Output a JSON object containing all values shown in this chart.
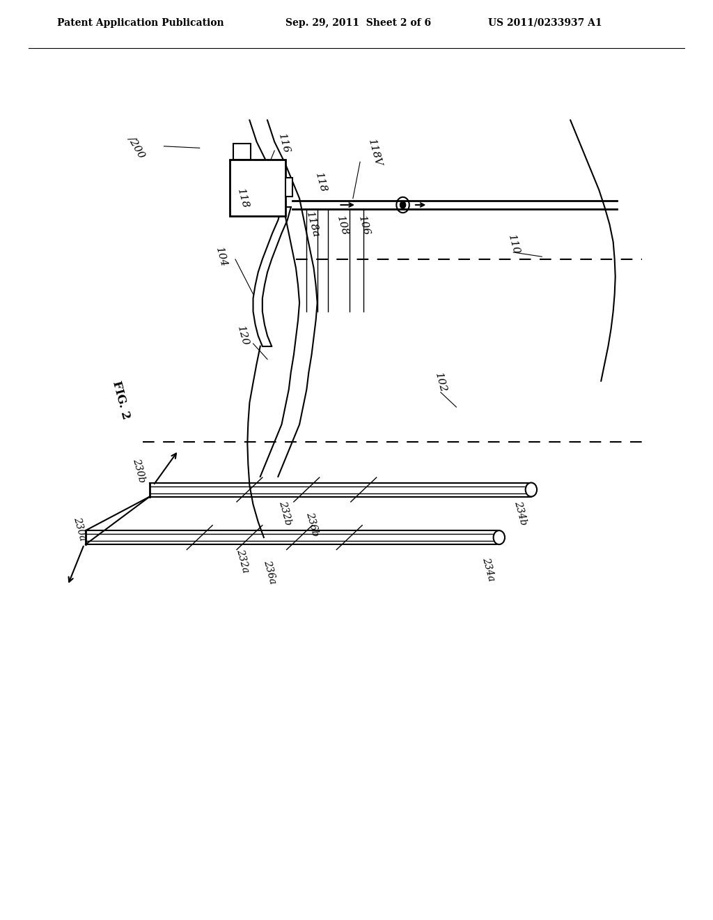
{
  "bg_color": "#ffffff",
  "header": {
    "left": "Patent Application Publication",
    "mid": "Sep. 29, 2011  Sheet 2 of 6",
    "right": "US 2011/0233937 A1"
  }
}
